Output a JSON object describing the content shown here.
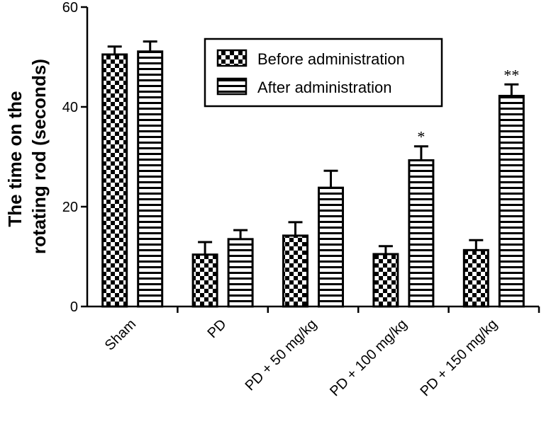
{
  "chart_data": {
    "type": "bar",
    "categories": [
      "Sham",
      "PD",
      "PD + 50 mg/kg",
      "PD + 100 mg/kg",
      "PD + 150 mg/kg"
    ],
    "series": [
      {
        "name": "Before administration",
        "pattern": "checkerboard",
        "values": [
          50.5,
          10.4,
          14.2,
          10.5,
          11.3
        ],
        "errors": [
          1.6,
          2.5,
          2.7,
          1.6,
          2.0
        ]
      },
      {
        "name": "After administration",
        "pattern": "horizontal-stripes",
        "values": [
          51.1,
          13.5,
          23.8,
          29.3,
          42.2
        ],
        "errors": [
          2.0,
          1.8,
          3.4,
          2.8,
          2.3
        ]
      }
    ],
    "annotations": [
      "",
      "",
      "",
      "*",
      "**"
    ],
    "ylabel_lines": [
      "The time on the",
      "rotating rod (seconds)"
    ],
    "xlabel": "",
    "ylim": [
      0,
      60
    ],
    "yticks": [
      0,
      20,
      40,
      60
    ],
    "legend_position": "top-right",
    "grid": false,
    "colors": {
      "bar_fill": "#ffffff",
      "bar_stroke": "#000000",
      "pattern": "#000000"
    }
  }
}
